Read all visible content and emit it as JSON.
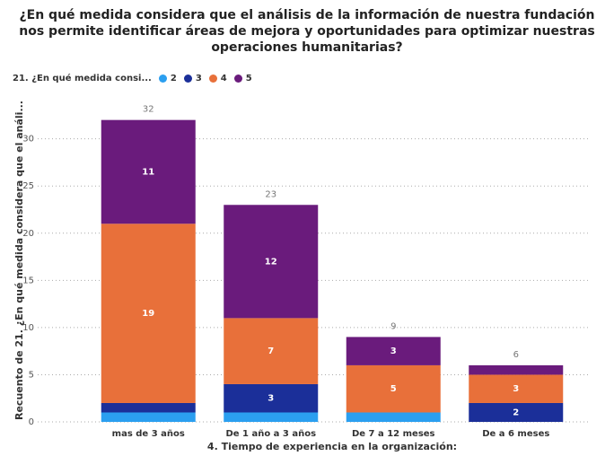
{
  "chart_data": {
    "type": "stacked_bar",
    "title": "¿En qué medida considera que el análisis de la información de nuestra fundación nos permite identificar áreas de mejora y oportunidades para optimizar nuestras operaciones humanitarias?",
    "legend_title": "21. ¿En qué medida consi...",
    "x_label": "4. Tiempo de experiencia en la organización:",
    "y_label": "Recuento de 21. ¿En qué medida considera que el análi...",
    "categories": [
      "mas de 3 años",
      "De 1 año a 3 años",
      "De 7 a 12 meses",
      "De a 6 meses"
    ],
    "series": [
      {
        "name": "2",
        "color": "#2b9ff0",
        "values": [
          1,
          1,
          1,
          0
        ]
      },
      {
        "name": "3",
        "color": "#1b2f99",
        "values": [
          1,
          3,
          0,
          2
        ]
      },
      {
        "name": "4",
        "color": "#e8703a",
        "values": [
          19,
          7,
          5,
          3
        ]
      },
      {
        "name": "5",
        "color": "#6a1b7c",
        "values": [
          11,
          12,
          3,
          1
        ]
      }
    ],
    "totals": [
      32,
      23,
      9,
      6
    ],
    "ylim": [
      0,
      33.3
    ],
    "yticks": [
      0,
      5,
      10,
      15,
      20,
      25,
      30
    ],
    "grid": true,
    "legend": "top-left"
  }
}
